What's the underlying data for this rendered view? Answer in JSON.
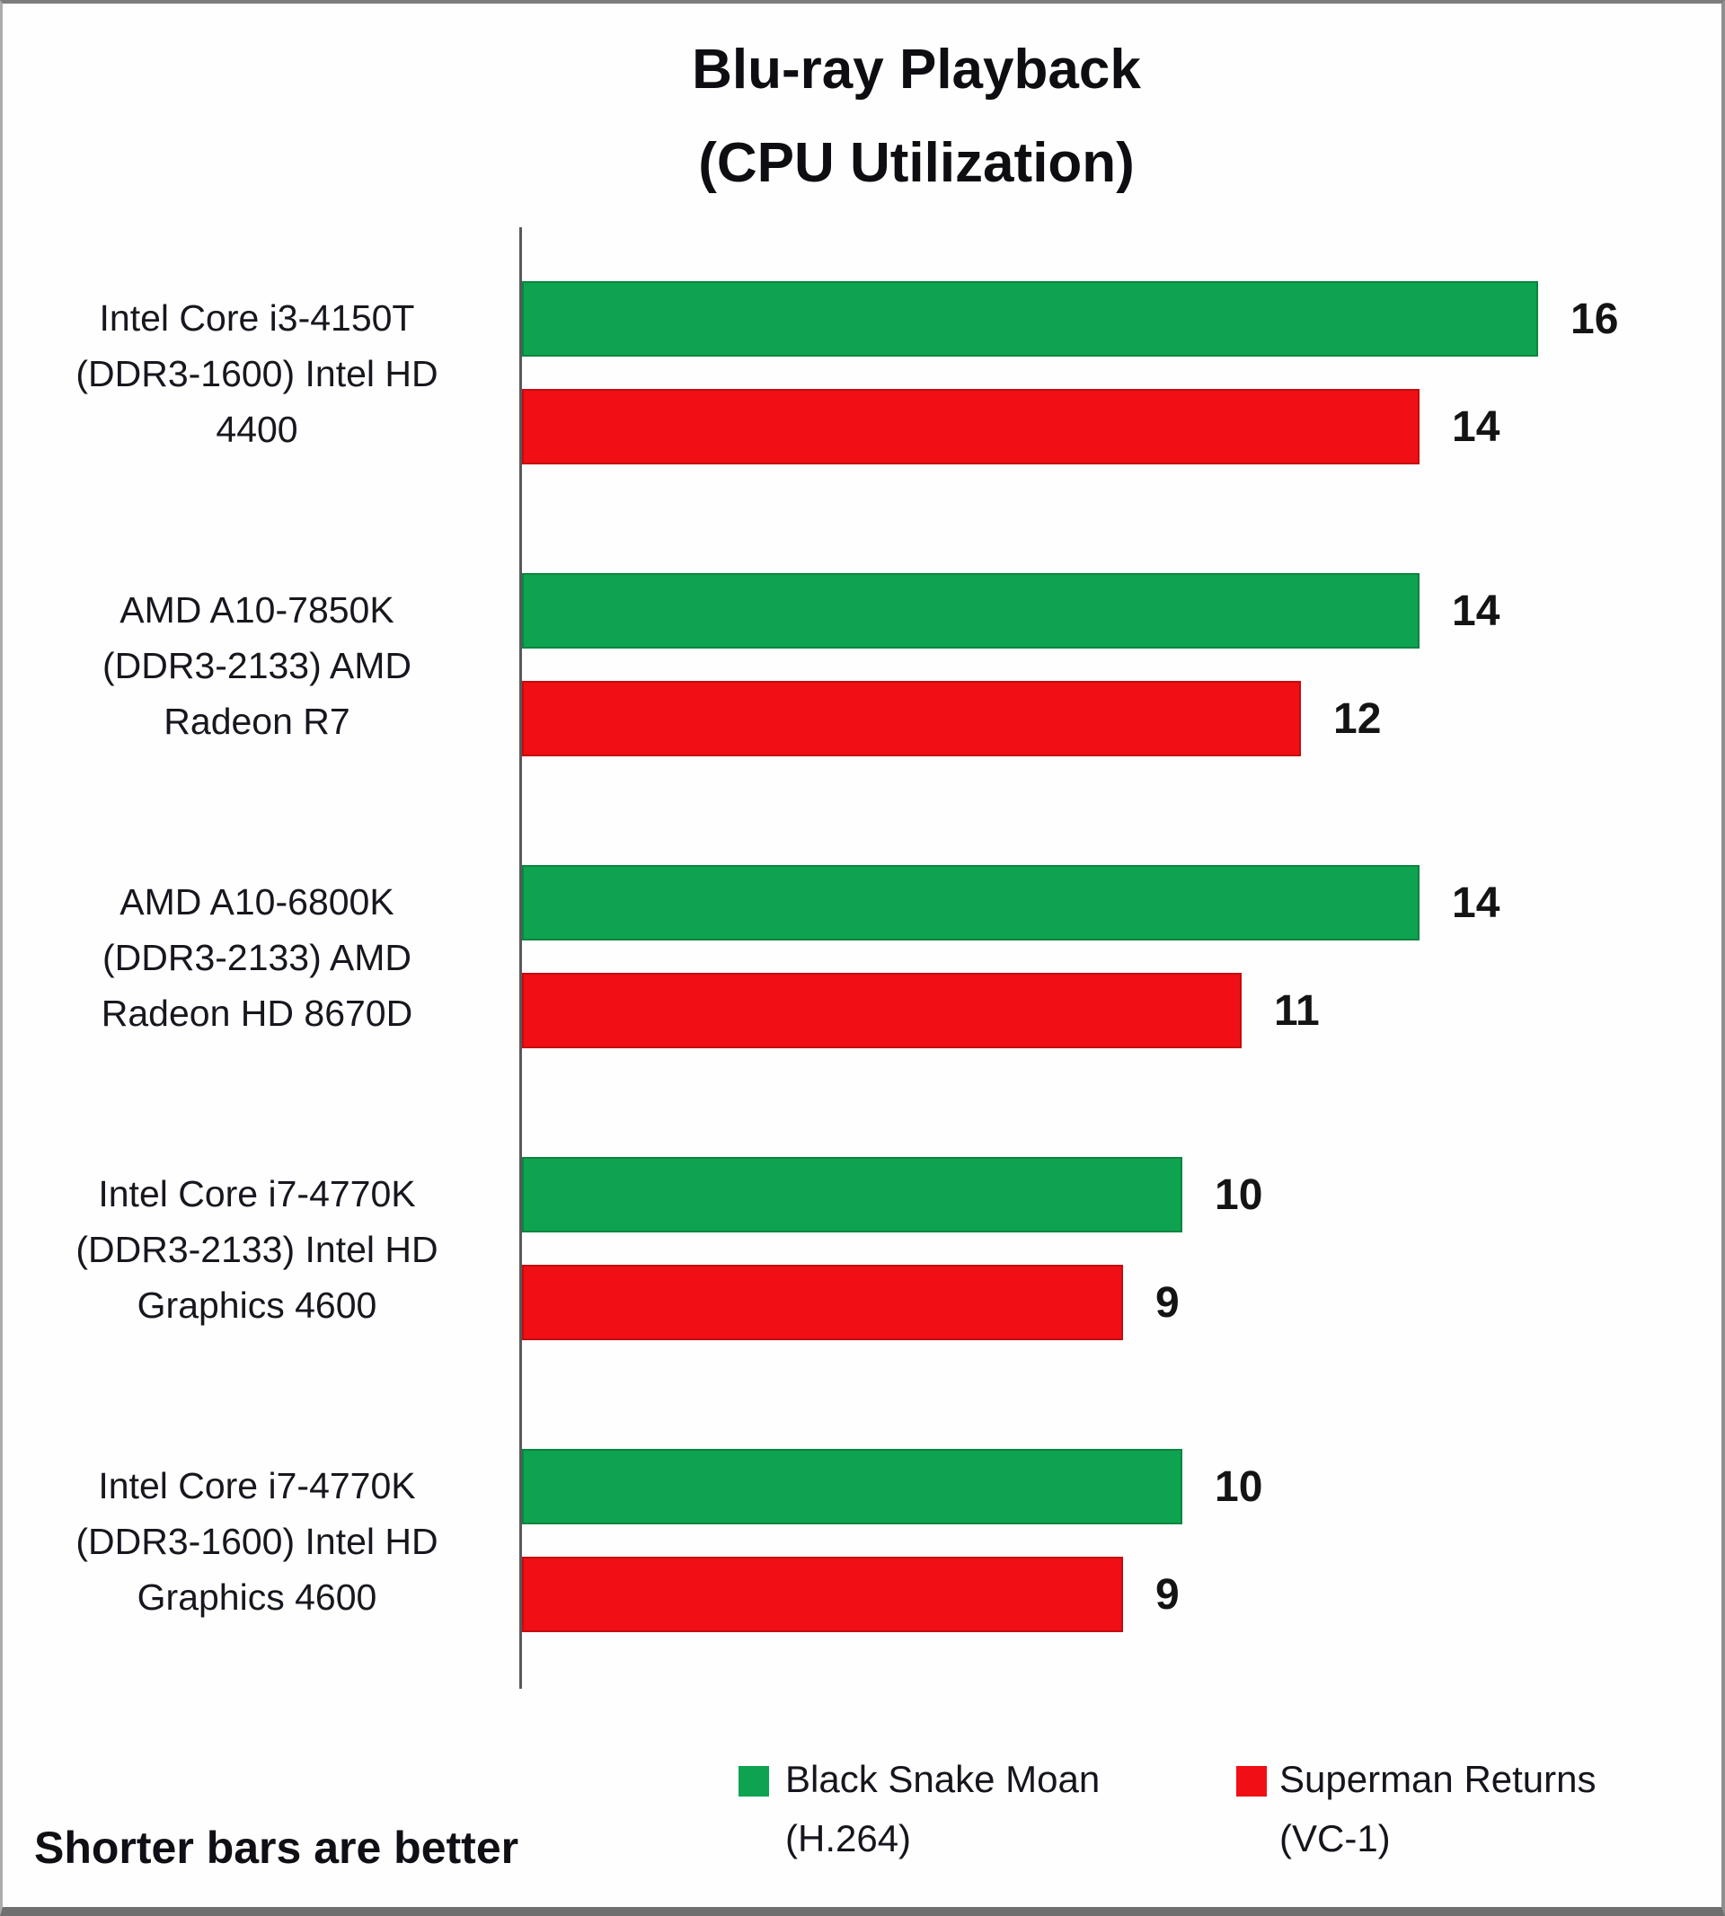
{
  "title": {
    "line1": "Blu-ray Playback",
    "line2": "(CPU Utilization)"
  },
  "footer": {
    "note": "Shorter bars are better"
  },
  "legend": [
    {
      "label_lines": [
        "Black Snake Moan",
        "(H.264)"
      ],
      "color": "#0EA350"
    },
    {
      "label_lines": [
        "Superman Returns",
        "(VC-1)"
      ],
      "color": "#F00F14"
    }
  ],
  "chart_data": {
    "type": "bar",
    "orientation": "horizontal",
    "title": "Blu-ray Playback (CPU Utilization)",
    "note": "Shorter bars are better",
    "grid": false,
    "legend_position": "bottom",
    "value_labels_shown": true,
    "categories": [
      "Intel Core i3-4150T (DDR3-1600) Intel HD 4400",
      "AMD A10-7850K (DDR3-2133) AMD Radeon R7",
      "AMD A10-6800K (DDR3-2133) AMD Radeon HD 8670D",
      "Intel Core i7-4770K (DDR3-2133) Intel HD Graphics 4600",
      "Intel Core i7-4770K (DDR3-1600) Intel HD Graphics 4600"
    ],
    "category_lines": [
      [
        "Intel Core i3-4150T",
        "(DDR3-1600) Intel HD",
        "4400"
      ],
      [
        "AMD A10-7850K",
        "(DDR3-2133) AMD",
        "Radeon R7"
      ],
      [
        "AMD A10-6800K",
        "(DDR3-2133) AMD",
        "Radeon HD 8670D"
      ],
      [
        "Intel Core i7-4770K",
        "(DDR3-2133) Intel HD",
        "Graphics 4600"
      ],
      [
        "Intel Core i7-4770K",
        "(DDR3-1600) Intel HD",
        "Graphics 4600"
      ]
    ],
    "series": [
      {
        "name": "Black Snake Moan (H.264)",
        "color": "#0EA350",
        "values": [
          16,
          14,
          14,
          10,
          10
        ]
      },
      {
        "name": "Superman Returns (VC-1)",
        "color": "#F00F14",
        "values": [
          14,
          12,
          11,
          9,
          9
        ]
      }
    ]
  }
}
